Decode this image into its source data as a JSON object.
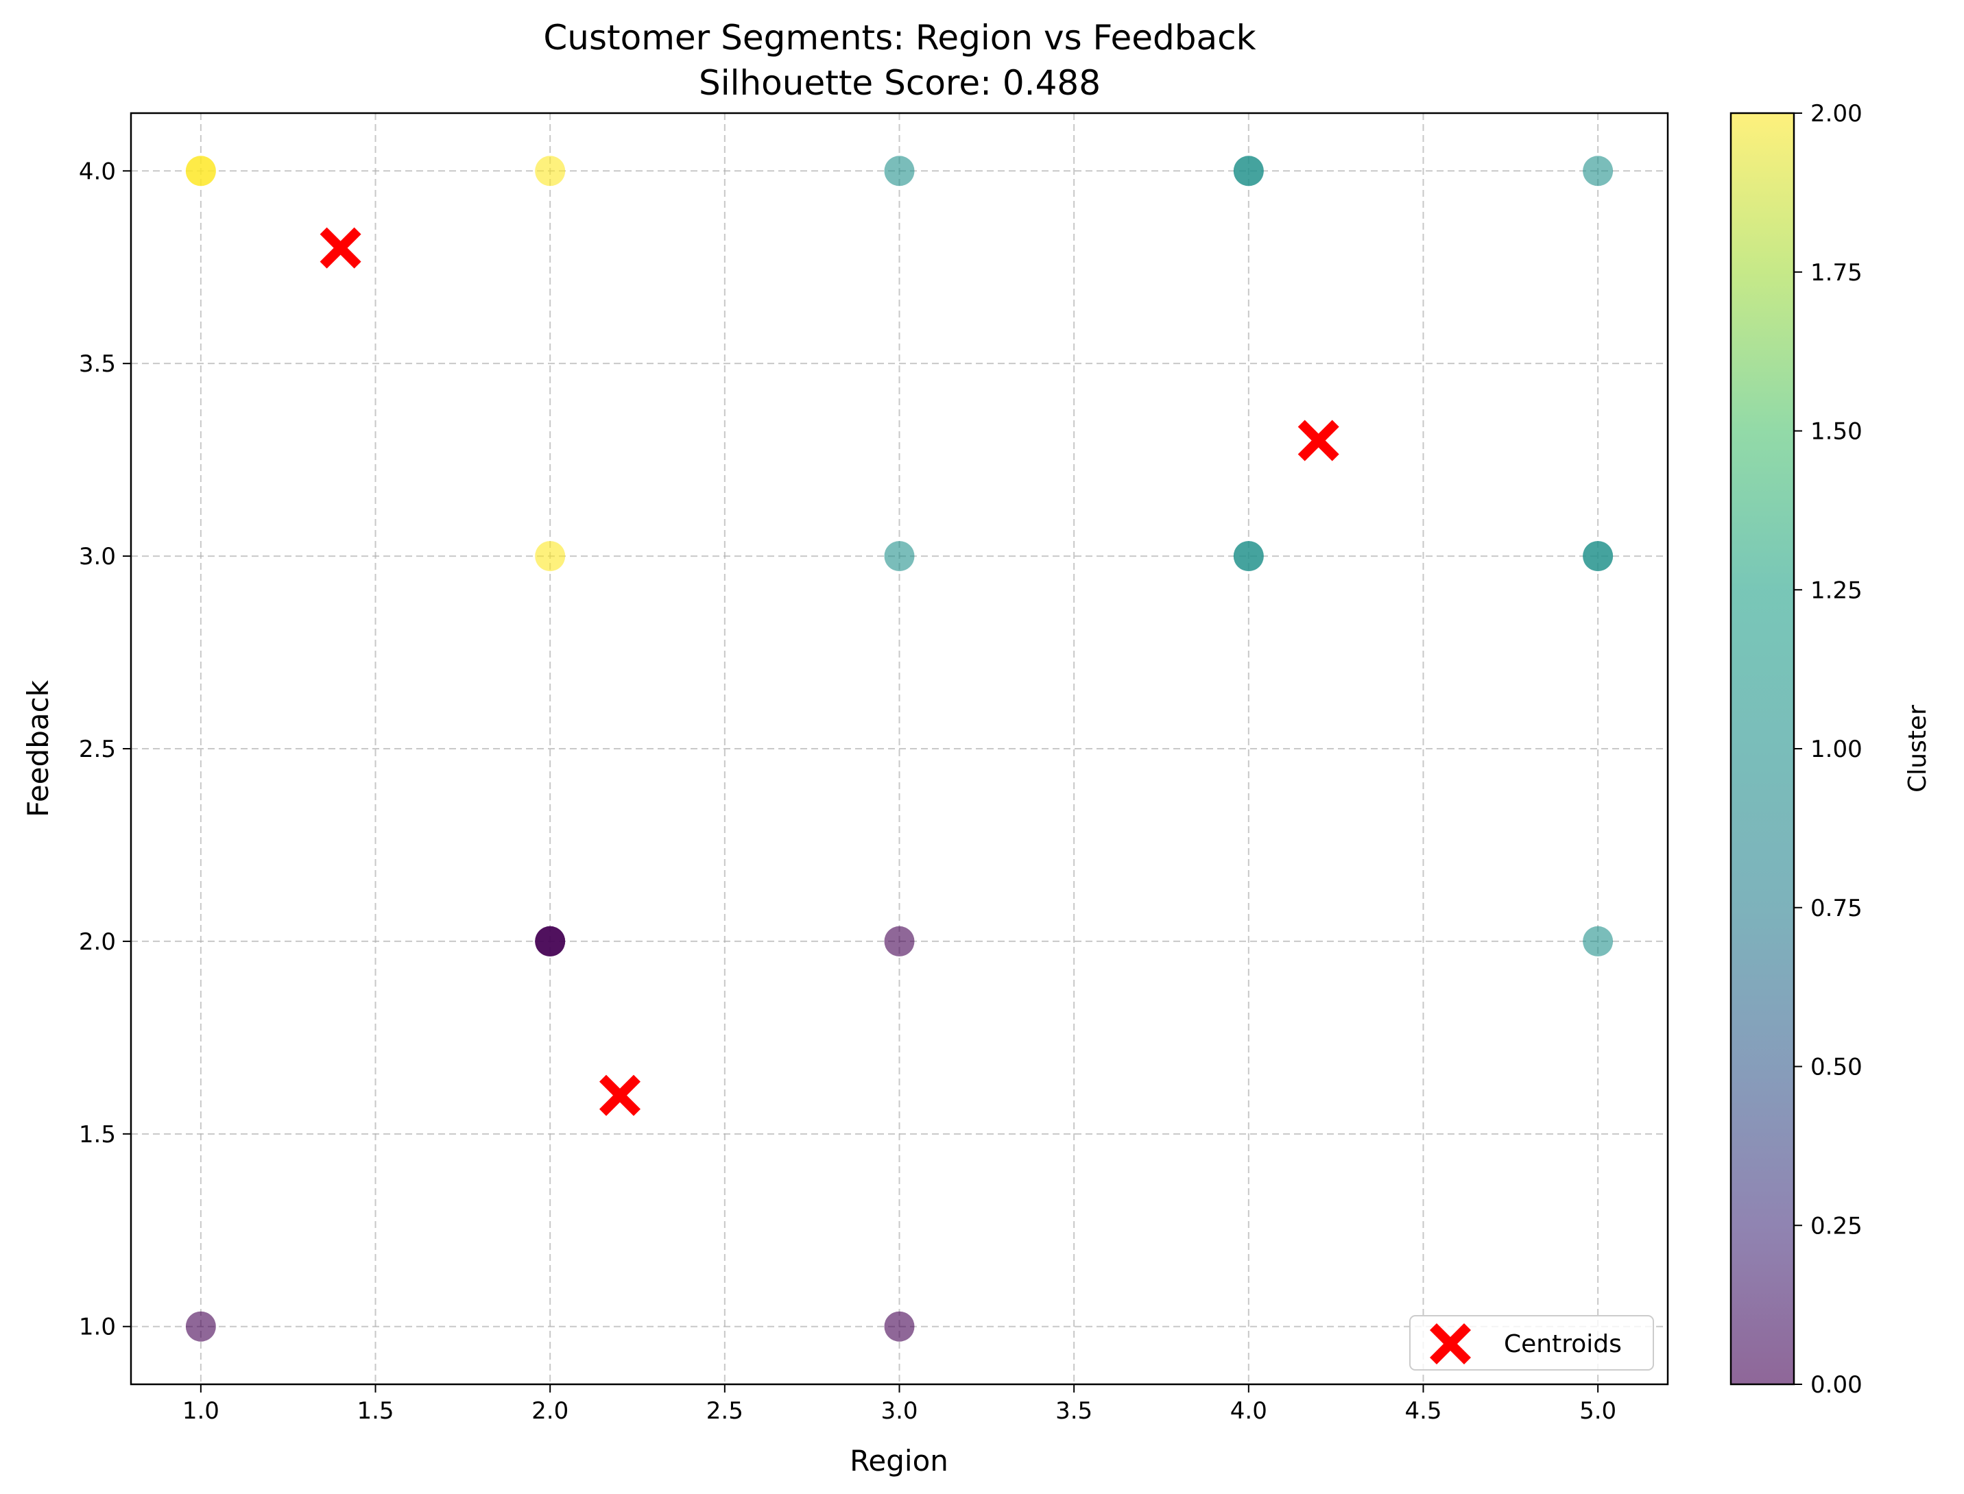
{
  "chart_data": {
    "type": "scatter",
    "title": "Customer Segments: Region vs Feedback",
    "subtitle": "Silhouette Score: 0.488",
    "xlabel": "Region",
    "ylabel": "Feedback",
    "xlim": [
      0.8,
      5.2
    ],
    "ylim": [
      0.85,
      4.15
    ],
    "xticks": [
      "1.0",
      "1.5",
      "2.0",
      "2.5",
      "3.0",
      "3.5",
      "4.0",
      "4.5",
      "5.0"
    ],
    "yticks": [
      "1.0",
      "1.5",
      "2.0",
      "2.5",
      "3.0",
      "3.5",
      "4.0"
    ],
    "grid": true,
    "grid_style": "dashed",
    "points": [
      {
        "x": 1,
        "y": 4,
        "cluster": 2
      },
      {
        "x": 1,
        "y": 4,
        "cluster": 2
      },
      {
        "x": 2,
        "y": 4,
        "cluster": 2
      },
      {
        "x": 2,
        "y": 3,
        "cluster": 2
      },
      {
        "x": 3,
        "y": 4,
        "cluster": 1
      },
      {
        "x": 4,
        "y": 4,
        "cluster": 1
      },
      {
        "x": 4,
        "y": 4,
        "cluster": 1
      },
      {
        "x": 5,
        "y": 4,
        "cluster": 1
      },
      {
        "x": 3,
        "y": 3,
        "cluster": 1
      },
      {
        "x": 4,
        "y": 3,
        "cluster": 1
      },
      {
        "x": 4,
        "y": 3,
        "cluster": 1
      },
      {
        "x": 5,
        "y": 3,
        "cluster": 1
      },
      {
        "x": 5,
        "y": 3,
        "cluster": 1
      },
      {
        "x": 5,
        "y": 2,
        "cluster": 1
      },
      {
        "x": 2,
        "y": 2,
        "cluster": 0
      },
      {
        "x": 2,
        "y": 2,
        "cluster": 0
      },
      {
        "x": 2,
        "y": 2,
        "cluster": 0
      },
      {
        "x": 3,
        "y": 2,
        "cluster": 0
      },
      {
        "x": 1,
        "y": 1,
        "cluster": 0
      },
      {
        "x": 3,
        "y": 1,
        "cluster": 0
      }
    ],
    "centroids": [
      {
        "x": 1.4,
        "y": 3.8
      },
      {
        "x": 4.2,
        "y": 3.3
      },
      {
        "x": 2.2,
        "y": 1.6
      }
    ],
    "point_alpha": 0.6,
    "centroid_color": "#ff0000",
    "legend": {
      "label": "Centroids",
      "position": "lower right"
    },
    "colorbar": {
      "label": "Cluster",
      "colormap": "viridis",
      "range": [
        0,
        2
      ],
      "ticks": [
        "0.00",
        "0.25",
        "0.50",
        "0.75",
        "1.00",
        "1.25",
        "1.50",
        "1.75",
        "2.00"
      ]
    },
    "cluster_colors": {
      "0": "#440154",
      "1": "#21918c",
      "2": "#fde725"
    }
  }
}
